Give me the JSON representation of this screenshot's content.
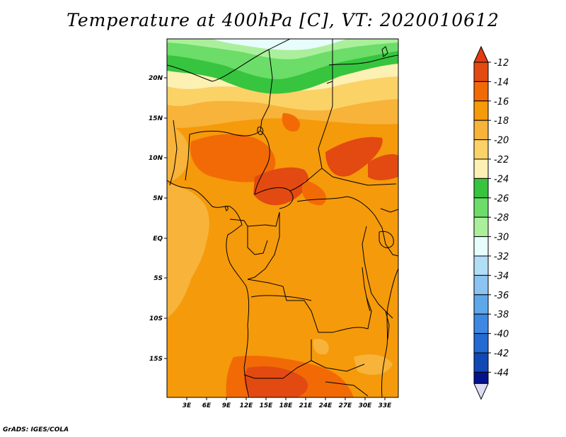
{
  "title": "Temperature at 400hPa [C], VT: 2020010612",
  "credit": "GrADS: IGES/COLA",
  "map": {
    "lon_range": [
      0,
      35
    ],
    "lat_range": [
      -20,
      25
    ],
    "x_ticks": [
      "3E",
      "6E",
      "9E",
      "12E",
      "15E",
      "18E",
      "21E",
      "24E",
      "27E",
      "30E",
      "33E"
    ],
    "y_ticks": [
      "20N",
      "15N",
      "10N",
      "5N",
      "EQ",
      "5S",
      "10S",
      "15S"
    ],
    "features": [
      "country-borders",
      "coastlines",
      "lakes"
    ]
  },
  "colorbar": {
    "labels": [
      "-12",
      "-14",
      "-16",
      "-18",
      "-20",
      "-22",
      "-24",
      "-26",
      "-28",
      "-30",
      "-32",
      "-34",
      "-36",
      "-38",
      "-40",
      "-42",
      "-44"
    ],
    "colors": [
      "#e24a12",
      "#f26a06",
      "#f59a0a",
      "#f7b33a",
      "#fbd266",
      "#fdf0b3",
      "#37c43f",
      "#6bdd68",
      "#abef9c",
      "#e6fdfb",
      "#b2ddf7",
      "#8bc3f1",
      "#5ea8ea",
      "#3d88e3",
      "#236ad3",
      "#1048b6",
      "#04128d"
    ],
    "over_color": "#e23c12",
    "under_color": "#dcdcf5"
  }
}
